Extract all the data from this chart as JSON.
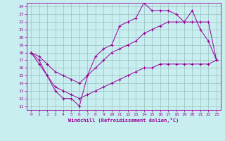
{
  "line1_x": [
    0,
    1,
    2,
    3,
    4,
    5,
    6,
    7,
    8,
    9,
    10,
    11,
    12,
    13,
    14,
    15,
    16,
    17,
    18,
    19,
    20,
    21,
    22,
    23
  ],
  "line1_y": [
    18,
    17,
    15,
    13,
    12,
    12,
    11,
    15,
    17.5,
    18.5,
    19,
    21.5,
    22,
    22.5,
    24.5,
    23.5,
    23.5,
    23.5,
    23,
    22,
    23.5,
    21,
    19.5,
    17
  ],
  "line2_x": [
    0,
    1,
    2,
    3,
    4,
    5,
    6,
    7,
    8,
    9,
    10,
    11,
    12,
    13,
    14,
    15,
    16,
    17,
    18,
    19,
    20,
    21,
    22,
    23
  ],
  "line2_y": [
    18,
    17.5,
    16.5,
    15.5,
    15,
    14.5,
    14,
    15,
    16,
    17,
    18,
    18.5,
    19,
    19.5,
    20.5,
    21,
    21.5,
    22,
    22,
    22,
    22,
    22,
    22,
    17
  ],
  "line3_x": [
    0,
    1,
    2,
    3,
    4,
    5,
    6,
    7,
    8,
    9,
    10,
    11,
    12,
    13,
    14,
    15,
    16,
    17,
    18,
    19,
    20,
    21,
    22,
    23
  ],
  "line3_y": [
    18,
    16.5,
    15,
    13.5,
    13,
    12.5,
    12,
    12.5,
    13,
    13.5,
    14,
    14.5,
    15,
    15.5,
    16,
    16,
    16.5,
    16.5,
    16.5,
    16.5,
    16.5,
    16.5,
    16.5,
    17
  ],
  "color": "#990099",
  "bg_color": "#c8eef0",
  "grid_color": "#9bbfc0",
  "xlabel": "Windchill (Refroidissement éolien,°C)",
  "xlim": [
    -0.5,
    23.5
  ],
  "ylim": [
    10.5,
    24.5
  ],
  "xticks": [
    0,
    1,
    2,
    3,
    4,
    5,
    6,
    7,
    8,
    9,
    10,
    11,
    12,
    13,
    14,
    15,
    16,
    17,
    18,
    19,
    20,
    21,
    22,
    23
  ],
  "yticks": [
    11,
    12,
    13,
    14,
    15,
    16,
    17,
    18,
    19,
    20,
    21,
    22,
    23,
    24
  ],
  "marker": "+",
  "markersize": 3,
  "linewidth": 0.7
}
